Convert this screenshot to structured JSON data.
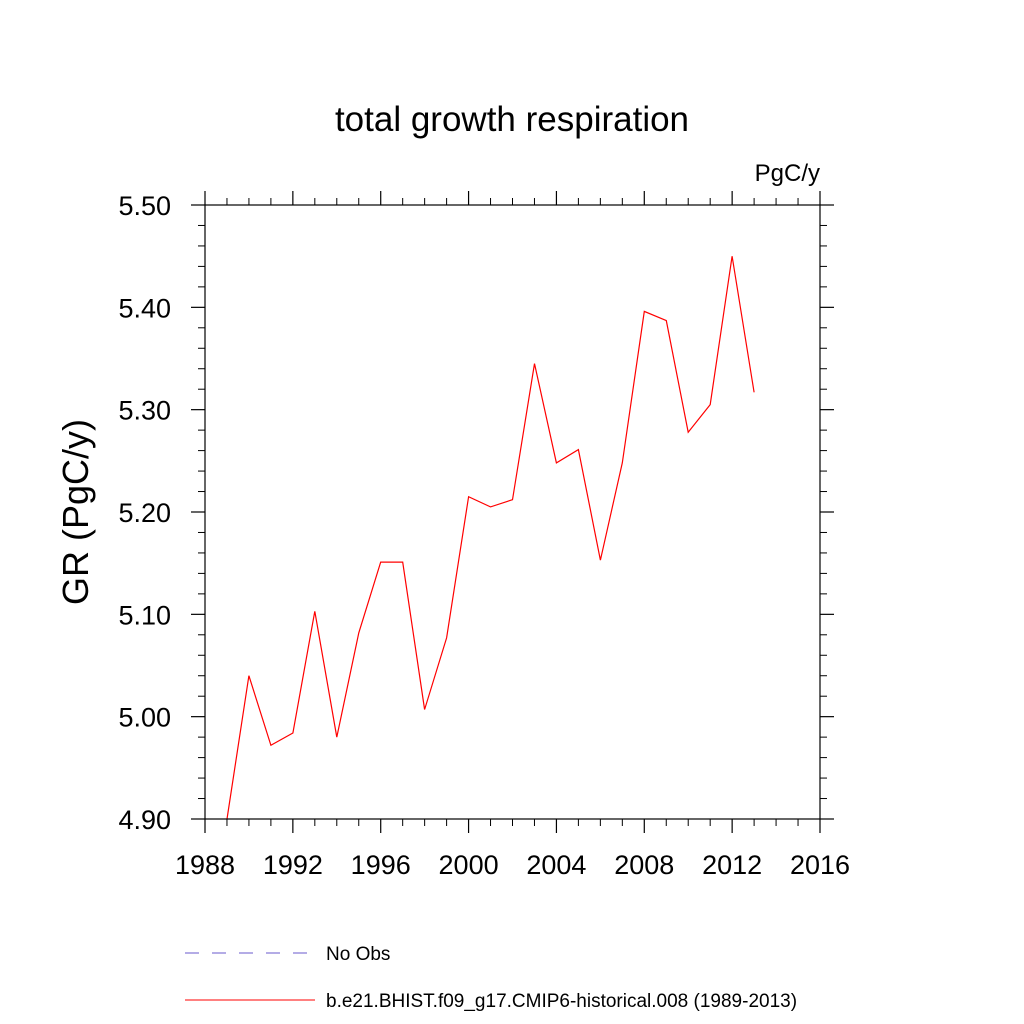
{
  "chart_data": {
    "type": "line",
    "title": "total growth respiration",
    "units_label": "PgC/y",
    "ylabel": "GR  (PgC/y)",
    "xlabel": "",
    "xlim": [
      1988,
      2016
    ],
    "ylim": [
      4.9,
      5.5
    ],
    "x_ticks": [
      "1988",
      "1992",
      "1996",
      "2000",
      "2004",
      "2008",
      "2012",
      "2016"
    ],
    "y_ticks": [
      "4.90",
      "5.00",
      "5.10",
      "5.20",
      "5.30",
      "5.40",
      "5.50"
    ],
    "x_minor_step": 1,
    "y_minor_step": 0.02,
    "grid": false,
    "legend_position": "bottom",
    "series": [
      {
        "name": "b.e21.BHIST.f09_g17.CMIP6-historical.008 (1989-2013)",
        "color": "#ff0000",
        "x": [
          1989,
          1990,
          1991,
          1992,
          1993,
          1994,
          1995,
          1996,
          1997,
          1998,
          1999,
          2000,
          2001,
          2002,
          2003,
          2004,
          2005,
          2006,
          2007,
          2008,
          2009,
          2010,
          2011,
          2012,
          2013
        ],
        "values": [
          4.9,
          5.04,
          4.972,
          4.984,
          5.103,
          4.98,
          5.082,
          5.151,
          5.151,
          5.007,
          5.077,
          5.215,
          5.205,
          5.212,
          5.345,
          5.248,
          5.261,
          5.153,
          5.248,
          5.396,
          5.387,
          5.278,
          5.305,
          5.45,
          5.317
        ]
      }
    ],
    "legend": [
      {
        "label": "No Obs",
        "color": "#6a5acd",
        "style": "dashed"
      },
      {
        "label": "b.e21.BHIST.f09_g17.CMIP6-historical.008 (1989-2013)",
        "color": "#ff0000",
        "style": "solid"
      }
    ]
  }
}
